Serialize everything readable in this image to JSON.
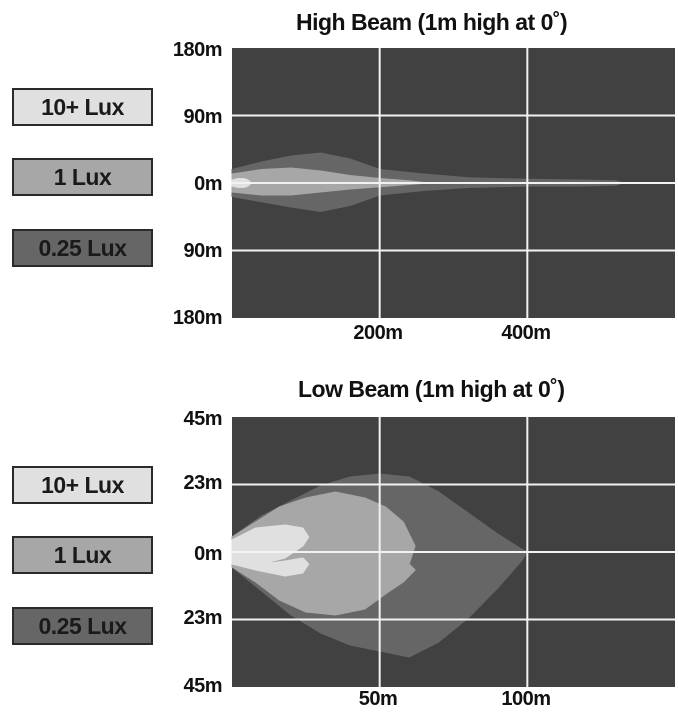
{
  "legend": [
    {
      "label": "10+ Lux",
      "fill": "#e0e0e0",
      "text_color": "#1a1a1a"
    },
    {
      "label": "1 Lux",
      "fill": "#a7a7a7",
      "text_color": "#1a1a1a"
    },
    {
      "label": "0.25 Lux",
      "fill": "#666666",
      "text_color": "#1a1a1a"
    }
  ],
  "colors": {
    "plot_background": "#414141",
    "grid": "#f2f2f2",
    "level_0_25": "#666666",
    "level_1": "#a7a7a7",
    "level_10": "#e0e0e0"
  },
  "chart_data": [
    {
      "type": "area",
      "title": "High Beam (1m high at 0˚)",
      "xlabel": "",
      "ylabel": "",
      "xlim": [
        0,
        600
      ],
      "ylim": [
        -180,
        180
      ],
      "grid": true,
      "legend_placement": "left",
      "y_tick_values": [
        180,
        90,
        0,
        -90,
        -180
      ],
      "y_tick_labels": [
        "180m",
        "90m",
        "0m",
        "90m",
        "180m"
      ],
      "x_tick_values": [
        200,
        400
      ],
      "x_tick_labels": [
        "200m",
        "400m"
      ],
      "series": [
        {
          "name": "0.25 Lux",
          "level": 0.25,
          "x": [
            0,
            40,
            80,
            120,
            160,
            200,
            260,
            320,
            400,
            470,
            520,
            530
          ],
          "upper": [
            18,
            28,
            36,
            40,
            32,
            18,
            12,
            7,
            5,
            4,
            3,
            0
          ],
          "lower": [
            -18,
            -25,
            -32,
            -38,
            -30,
            -16,
            -10,
            -6,
            -4,
            -4,
            -3,
            0
          ]
        },
        {
          "name": "1 Lux",
          "level": 1,
          "x": [
            0,
            40,
            80,
            120,
            160,
            200,
            240,
            265
          ],
          "upper": [
            12,
            18,
            20,
            16,
            10,
            6,
            3,
            0
          ],
          "lower": [
            -12,
            -16,
            -16,
            -12,
            -8,
            -5,
            -2,
            0
          ]
        },
        {
          "name": "10+ Lux",
          "level": 10,
          "x": [
            0,
            8,
            16,
            22,
            26
          ],
          "upper": [
            4,
            6,
            6,
            4,
            0
          ],
          "lower": [
            -4,
            -6,
            -6,
            -4,
            0
          ]
        }
      ]
    },
    {
      "type": "area",
      "title": "Low Beam (1m high at 0˚)",
      "xlabel": "",
      "ylabel": "",
      "xlim": [
        0,
        150
      ],
      "ylim": [
        -45,
        45
      ],
      "grid": true,
      "legend_placement": "left",
      "y_tick_values": [
        45,
        22.5,
        0,
        -22.5,
        -45
      ],
      "y_tick_labels": [
        "45m",
        "23m",
        "0m",
        "23m",
        "45m"
      ],
      "x_tick_values": [
        50,
        100
      ],
      "x_tick_labels": [
        "50m",
        "100m"
      ],
      "series": [
        {
          "name": "0.25 Lux",
          "level": 0.25,
          "x": [
            0,
            10,
            20,
            30,
            40,
            50,
            60,
            70,
            80,
            90,
            98,
            100
          ],
          "upper": [
            5,
            12,
            17,
            22,
            25,
            26,
            25,
            20,
            13,
            6,
            1,
            0
          ],
          "lower": [
            -5,
            -13,
            -21,
            -27,
            -31,
            -33,
            -35,
            -30,
            -22,
            -12,
            -3,
            0
          ]
        },
        {
          "name": "1 Lux",
          "level": 1,
          "x": [
            0,
            8,
            16,
            25,
            35,
            45,
            52,
            58,
            62,
            60,
            55
          ],
          "upper": [
            5,
            10,
            15,
            18,
            20,
            18,
            15,
            10,
            2,
            -4,
            -8
          ],
          "lower": [
            -5,
            -10,
            -16,
            -20,
            -21,
            -19,
            -14,
            -10,
            -6,
            -4,
            -8
          ]
        },
        {
          "name": "10+ Lux",
          "level": 10,
          "x": [
            0,
            8,
            18,
            24,
            26,
            24,
            18,
            10,
            3
          ],
          "upper": [
            4,
            8,
            9,
            8,
            5,
            2,
            -2,
            -4,
            -2
          ],
          "lower": [
            -4,
            -6,
            -8,
            -7,
            -4,
            -2,
            -3,
            -4,
            -2
          ]
        }
      ]
    }
  ]
}
